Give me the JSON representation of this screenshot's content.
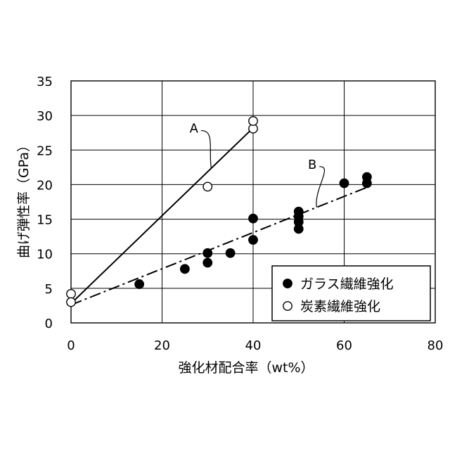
{
  "chart_data": {
    "type": "scatter",
    "title": "",
    "xlabel": "強化材配合率（wt%）",
    "ylabel": "曲げ弾性率（GPa）",
    "xlim": [
      0,
      80
    ],
    "ylim": [
      0,
      35
    ],
    "xticks": [
      0,
      20,
      40,
      60,
      80
    ],
    "yticks": [
      0,
      5,
      10,
      15,
      20,
      25,
      30,
      35
    ],
    "grid": true,
    "legend_position": "bottom-right",
    "series": [
      {
        "name": "ガラス繊維強化",
        "marker": "filled-circle",
        "points": [
          [
            15,
            5.6
          ],
          [
            25,
            7.8
          ],
          [
            30,
            8.7
          ],
          [
            30,
            10.1
          ],
          [
            35,
            10.1
          ],
          [
            40,
            12.0
          ],
          [
            40,
            15.1
          ],
          [
            50,
            13.6
          ],
          [
            50,
            14.6
          ],
          [
            50,
            15.4
          ],
          [
            50,
            16.1
          ],
          [
            60,
            20.2
          ],
          [
            65,
            20.2
          ],
          [
            65,
            21.1
          ]
        ]
      },
      {
        "name": "炭素繊維強化",
        "marker": "open-circle",
        "points": [
          [
            0,
            4.2
          ],
          [
            0,
            3.0
          ],
          [
            30,
            19.7
          ],
          [
            40,
            28.1
          ],
          [
            40,
            29.2
          ]
        ]
      }
    ],
    "fit_lines": [
      {
        "label": "A",
        "style": "solid",
        "from": [
          0,
          2.8
        ],
        "to": [
          40,
          28.2
        ],
        "label_at": [
          27,
          27.5
        ]
      },
      {
        "label": "B",
        "style": "dash-dot",
        "from": [
          0,
          2.6
        ],
        "to": [
          65,
          19.6
        ],
        "label_at": [
          53,
          22.3
        ]
      }
    ],
    "colors": {
      "markers": "#000000",
      "lines": "#000000",
      "grid": "#000000"
    }
  }
}
